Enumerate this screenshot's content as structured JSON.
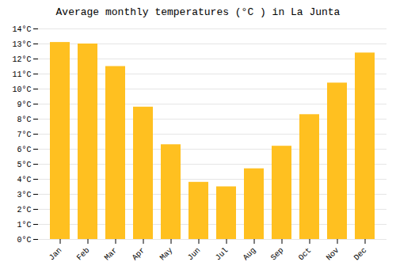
{
  "chart_data": {
    "type": "bar",
    "title": "Average monthly temperatures (°C ) in La Junta",
    "categories": [
      "Jan",
      "Feb",
      "Mar",
      "Apr",
      "May",
      "Jun",
      "Jul",
      "Aug",
      "Sep",
      "Oct",
      "Nov",
      "Dec"
    ],
    "values": [
      13.1,
      13.0,
      11.5,
      8.8,
      6.3,
      3.8,
      3.5,
      4.7,
      6.2,
      8.3,
      10.4,
      12.4
    ],
    "color": "#FFC020",
    "ylim": [
      0,
      14
    ],
    "yticks": [
      {
        "value": 0,
        "label": "0°C"
      },
      {
        "value": 1,
        "label": "1°C"
      },
      {
        "value": 2,
        "label": "2°C"
      },
      {
        "value": 3,
        "label": "3°C"
      },
      {
        "value": 4,
        "label": "4°C"
      },
      {
        "value": 5,
        "label": "5°C"
      },
      {
        "value": 6,
        "label": "6°C"
      },
      {
        "value": 7,
        "label": "7°C"
      },
      {
        "value": 8,
        "label": "8°C"
      },
      {
        "value": 9,
        "label": "9°C"
      },
      {
        "value": 10,
        "label": "10°C"
      },
      {
        "value": 11,
        "label": "11°C"
      },
      {
        "value": 12,
        "label": "12°C"
      },
      {
        "value": 13,
        "label": "13°C"
      },
      {
        "value": 14,
        "label": "14°C"
      }
    ],
    "grid": true
  }
}
